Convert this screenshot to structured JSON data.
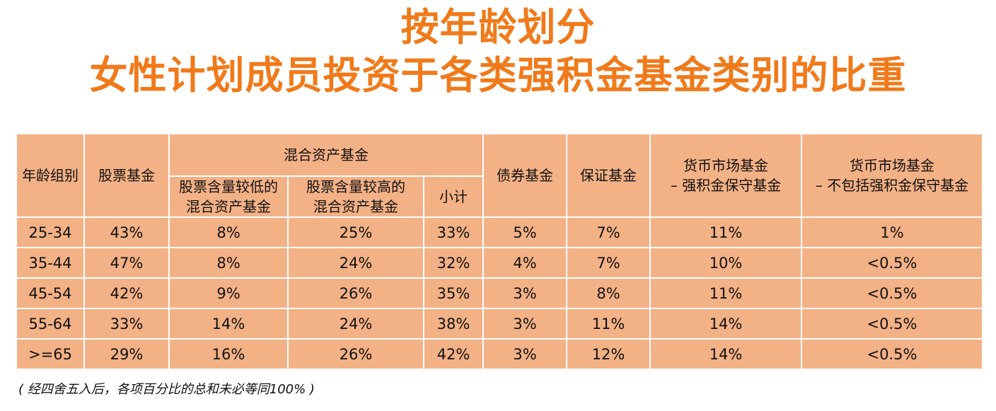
{
  "title": {
    "line1": "按年龄划分",
    "line2": "女性计划成员投资于各类强积金基金类别的比重"
  },
  "header": {
    "age_group": "年龄组别",
    "equity": "股票基金",
    "mixed": "混合资产基金",
    "mixed_low": [
      "股票含量较低的",
      "混合资产基金"
    ],
    "mixed_high": [
      "股票含量较高的",
      "混合资产基金"
    ],
    "subtotal": "小计",
    "bond": "债券基金",
    "guaranteed": "保证基金",
    "money_market_mpf": [
      "货币市场基金",
      "– 强积金保守基金"
    ],
    "money_market_other": [
      "货币市场基金",
      "– 不包括强积金保守基金"
    ]
  },
  "rows": [
    [
      "25-34",
      "43%",
      "8%",
      "25%",
      "33%",
      "5%",
      "7%",
      "11%",
      "1%"
    ],
    [
      "35-44",
      "47%",
      "8%",
      "24%",
      "32%",
      "4%",
      "7%",
      "10%",
      "<0.5%"
    ],
    [
      "45-54",
      "42%",
      "9%",
      "26%",
      "35%",
      "3%",
      "8%",
      "11%",
      "<0.5%"
    ],
    [
      "55-64",
      "33%",
      "14%",
      "24%",
      "38%",
      "3%",
      "11%",
      "14%",
      "<0.5%"
    ],
    [
      ">=65",
      "29%",
      "16%",
      "26%",
      "42%",
      "3%",
      "12%",
      "14%",
      "<0.5%"
    ]
  ],
  "footnote": "( 经四舍五入后，各项百分比的总和未必等同100% )",
  "colors": {
    "title": "#f07a1a",
    "table_fill": "#f3b186",
    "grid_line": "#ffffff"
  }
}
